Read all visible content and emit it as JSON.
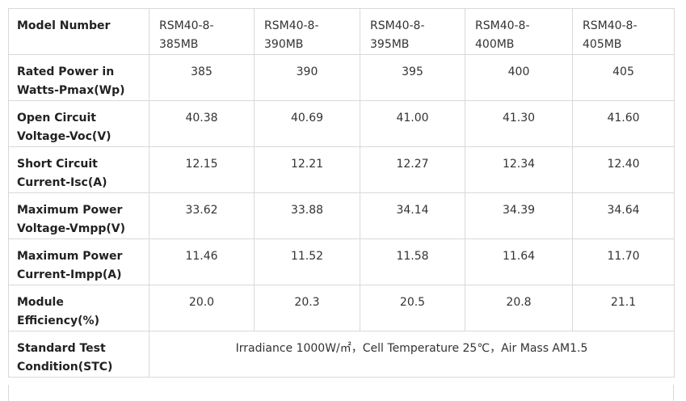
{
  "table": {
    "header": [
      "Model Number",
      "RSM40-8-385MB",
      "RSM40-8-390MB",
      "RSM40-8-395MB",
      "RSM40-8-400MB",
      "RSM40-8-405MB"
    ],
    "rows": [
      [
        "Rated Power in Watts-Pmax(Wp)",
        "385",
        "390",
        "395",
        "400",
        "405"
      ],
      [
        "Open Circuit Voltage-Voc(V)",
        "40.38",
        "40.69",
        "41.00",
        "41.30",
        "41.60"
      ],
      [
        "Short Circuit Current-Isc(A)",
        "12.15",
        "12.21",
        "12.27",
        "12.34",
        "12.40"
      ],
      [
        "Maximum Power Voltage-Vmpp(V)",
        "33.62",
        "33.88",
        "34.14",
        "34.39",
        "34.64"
      ],
      [
        "Maximum Power Current-Impp(A)",
        "11.46",
        "11.52",
        "11.58",
        "11.64",
        "11.70"
      ],
      [
        "Module Efficiency(%)",
        "20.0",
        "20.3",
        "20.5",
        "20.8",
        "21.1"
      ]
    ],
    "stc": {
      "label": "Standard Test Condition(STC)",
      "text": "Irradiance 1000W/㎡，Cell Temperature 25℃，Air Mass AM1.5"
    }
  }
}
